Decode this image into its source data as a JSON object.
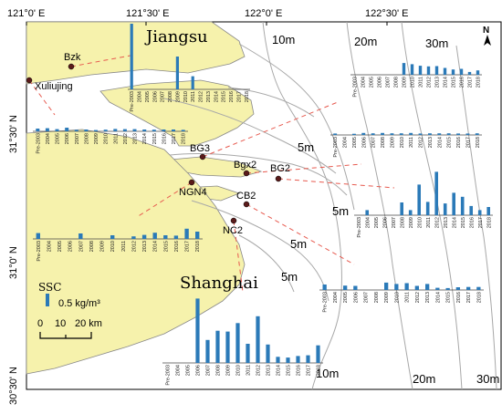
{
  "axes": {
    "top_lon": [
      "121°0' E",
      "121°30' E",
      "122°0' E",
      "122°30' E"
    ],
    "left_lat": [
      "31°30' N",
      "31°0' N",
      "30°30' N"
    ]
  },
  "regions": {
    "jiangsu": "Jiangsu",
    "shanghai": "Shanghai"
  },
  "depth_labels": [
    "10m",
    "20m",
    "30m",
    "5m",
    "5m",
    "5m",
    "5m",
    "10m",
    "20m",
    "30m"
  ],
  "stations": [
    "Bzk",
    "Xuliujing",
    "BG3",
    "Bgx2",
    "BG2",
    "NGN4",
    "CB2",
    "NC2"
  ],
  "legend": {
    "title": "SSC",
    "bar_label": "0.5 kg/m³"
  },
  "scale_bar": {
    "ticks": [
      "0",
      "10",
      "20 km"
    ]
  },
  "north_arrow": {
    "label": "N"
  },
  "colors": {
    "land": "#f6f2ac",
    "sea": "#ffffff",
    "bar": "#2b7ab8",
    "dash": "#e75a4f",
    "contour": "#a8a8a8"
  },
  "chart_data": [
    {
      "type": "bar",
      "station": "Bzk",
      "categories": [
        "Pre-2003",
        "2004",
        "2005",
        "2006",
        "2007",
        "2008",
        "2009",
        "2010",
        "2011",
        "2012",
        "2013",
        "2014",
        "2015",
        "2016",
        "2017",
        "2018"
      ],
      "values": [
        1.0,
        0,
        0,
        0,
        0,
        0,
        0.5,
        0,
        0.2,
        0,
        0,
        0,
        0,
        0,
        0,
        0
      ]
    },
    {
      "type": "bar",
      "station": "Xuliujing",
      "categories": [
        "Pre-2003",
        "2004",
        "2005",
        "2006",
        "2007",
        "2008",
        "2009",
        "2010",
        "2011",
        "2012",
        "2013",
        "2014",
        "2015",
        "2016",
        "2017",
        "2018"
      ],
      "values": [
        0.15,
        0.17,
        0.12,
        0.2,
        0.08,
        0.1,
        0.07,
        0.09,
        0.13,
        0.12,
        0.12,
        0.1,
        0.09,
        0.1,
        0.1,
        0.08
      ]
    },
    {
      "type": "bar",
      "station": "BG3",
      "categories": [
        "Pre-2003",
        "2004",
        "2005",
        "2006",
        "2007",
        "2008",
        "2009",
        "2010",
        "2011",
        "2012",
        "2013",
        "2014",
        "2015",
        "2016",
        "2017",
        "2018"
      ],
      "values": [
        0.09,
        0,
        0.07,
        0.12,
        0.1,
        0.12,
        0.1,
        0.1,
        0.12,
        0.09,
        0.1,
        0.1,
        0.1,
        0.09,
        0.09,
        0.1
      ]
    },
    {
      "type": "bar",
      "station": "Bgx2",
      "categories": [
        "Pre-2003",
        "2004",
        "2005",
        "2006",
        "2007",
        "2008",
        "2009",
        "2010",
        "2011",
        "2012",
        "2013",
        "2014",
        "2015",
        "2016",
        "2017",
        "2018"
      ],
      "values": [
        0,
        0,
        0,
        0,
        0,
        0,
        0.38,
        0.34,
        0.29,
        0.27,
        0.28,
        0.22,
        0.17,
        0.19,
        0.09,
        0.14
      ]
    },
    {
      "type": "bar",
      "station": "BG2",
      "categories": [
        "Pre-2003",
        "2004",
        "2005",
        "2006",
        "2007",
        "2008",
        "2009",
        "2010",
        "2011",
        "2012",
        "2013",
        "2014",
        "2015",
        "2016",
        "2017",
        "2018"
      ],
      "values": [
        0,
        0.1,
        0,
        0,
        0,
        0.25,
        0.1,
        0.6,
        0.26,
        0.85,
        0.23,
        0.44,
        0.36,
        0.18,
        0.1,
        0.16
      ]
    },
    {
      "type": "bar",
      "station": "NGN4",
      "categories": [
        "Pre-2003",
        "2004",
        "2005",
        "2006",
        "2007",
        "2008",
        "2009",
        "2010",
        "2011",
        "2012",
        "2013",
        "2014",
        "2015",
        "2016",
        "2017",
        "2018"
      ],
      "values": [
        0.16,
        0,
        0,
        0,
        0.15,
        0,
        0,
        0.1,
        0,
        0.07,
        0.11,
        0.17,
        0.1,
        0.09,
        0.28,
        0.2
      ]
    },
    {
      "type": "bar",
      "station": "CB2",
      "categories": [
        "Pre-2003",
        "2004",
        "2005",
        "2006",
        "2007",
        "2008",
        "2009",
        "2010",
        "2011",
        "2012",
        "2013",
        "2014",
        "2015",
        "2016",
        "2017",
        "2018"
      ],
      "values": [
        0.2,
        0,
        0.16,
        0.15,
        0,
        0,
        0.27,
        0.22,
        0.25,
        0.15,
        0.22,
        0.08,
        0.07,
        0.1,
        0.11,
        0.11
      ]
    },
    {
      "type": "bar",
      "station": "NC2",
      "categories": [
        "Pre-2003",
        "2004",
        "2005",
        "2006",
        "2007",
        "2008",
        "2009",
        "2010",
        "2011",
        "2012",
        "2013",
        "2014",
        "2015",
        "2016",
        "2017",
        "2018"
      ],
      "values": [
        0,
        0,
        0,
        0.84,
        0.3,
        0.42,
        0.41,
        0.52,
        0.25,
        0.61,
        0.24,
        0.08,
        0.07,
        0.09,
        0.1,
        0.23
      ]
    }
  ]
}
